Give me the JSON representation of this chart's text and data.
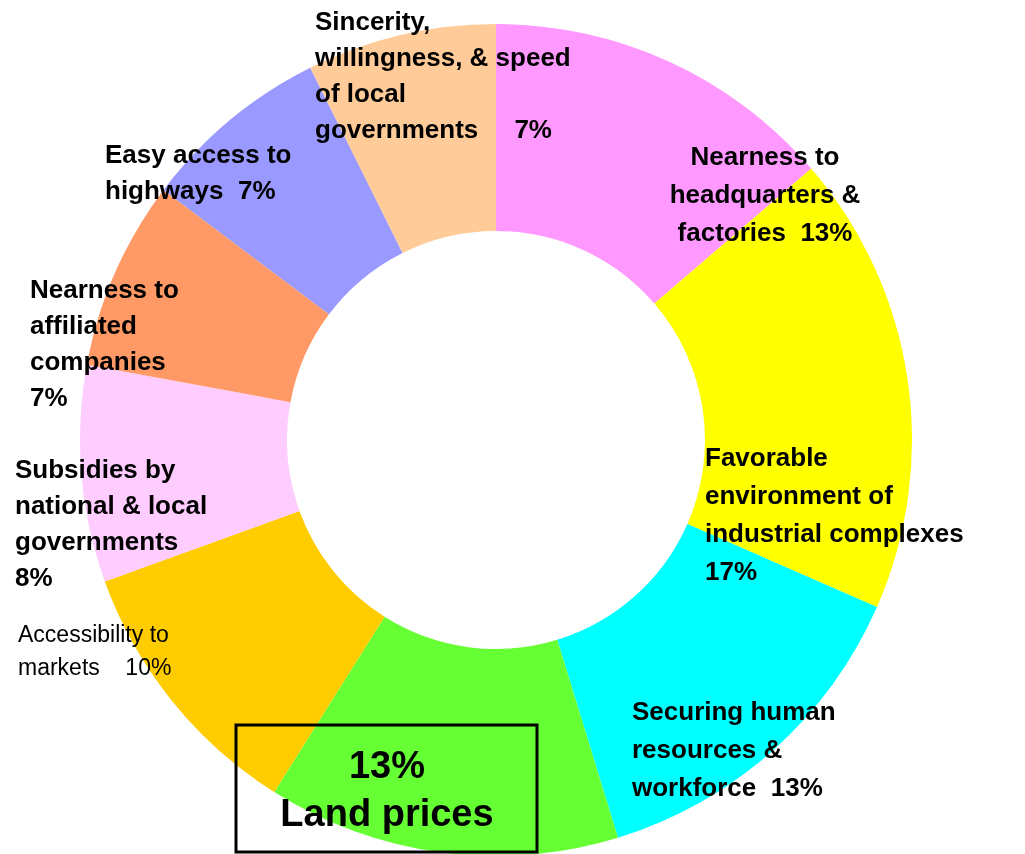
{
  "chart_data": {
    "type": "donut",
    "categories": [
      "Nearness to\nheadquarters &\nfactories",
      "Favorable\nenvironment of\nindustrial complexes",
      "Securing human\nresources &\nworkforce",
      "Land prices",
      "Accessibility to\nmarkets",
      "Subsidies by\nnational & local\ngovernments",
      "Nearness to\naffiliated\ncompanies",
      "Easy access to\nhighways",
      "Sincerity,\nwillingness, & speed\nof local\ngovernments"
    ],
    "values": [
      13,
      17,
      13,
      13,
      10,
      8,
      7,
      7,
      7
    ],
    "value_labels": [
      "13%",
      "17%",
      "13%",
      "13%",
      "10%",
      "8%",
      "7%",
      "7%",
      "7%"
    ],
    "colors": [
      "#ff99ff",
      "#ffff00",
      "#00ffff",
      "#66ff33",
      "#ffcc00",
      "#ffccff",
      "#ff9966",
      "#9999ff",
      "#ffcc99"
    ]
  }
}
